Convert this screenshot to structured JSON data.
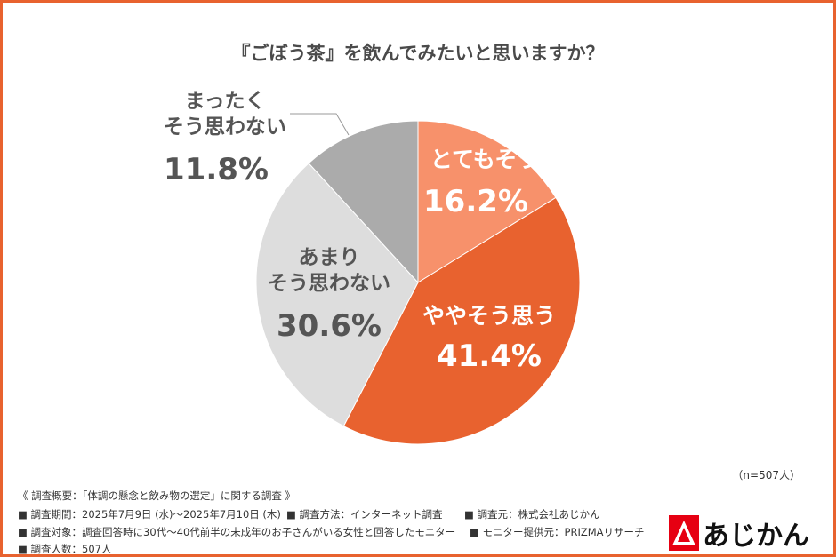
{
  "chart_data": {
    "type": "pie",
    "title": "『ごぼう茶』を飲んでみたいと思いますか？",
    "slices": [
      {
        "label": "とてもそう思う",
        "value": 16.2,
        "value_label": "16.2%",
        "color": "#F7916B"
      },
      {
        "label": "ややそう思う",
        "value": 41.4,
        "value_label": "41.4%",
        "color": "#E8622F"
      },
      {
        "label": "あまり\nそう思わない",
        "label_lines": [
          "あまり",
          "そう思わない"
        ],
        "value": 30.6,
        "value_label": "30.6%",
        "color": "#DDDDDD"
      },
      {
        "label": "まったく\nそう思わない",
        "label_lines": [
          "まったく",
          "そう思わない"
        ],
        "value": 11.8,
        "value_label": "11.8%",
        "color": "#ABABAB"
      }
    ],
    "start": "top",
    "direction": "clockwise"
  },
  "sample": "（n=507人）",
  "footer": {
    "overview": "《 調査概要：「体調の懸念と飲み物の選定」に関する調査 》",
    "period": "■ 調査期間：2025年7月9日 (水)～2025年7月10日 (木)",
    "method": "■ 調査方法：インターネット調査",
    "source": "■ 調査元：株式会社あじかん",
    "target": "■ 調査対象：調査回答時に30代～40代前半の未成年のお子さんがいる女性と回答したモニター",
    "provider": "■ モニター提供元：PRIZMAリサーチ",
    "count": "■ 調査人数：507人"
  },
  "logo": {
    "text": "あじかん",
    "color": "#E60012"
  }
}
